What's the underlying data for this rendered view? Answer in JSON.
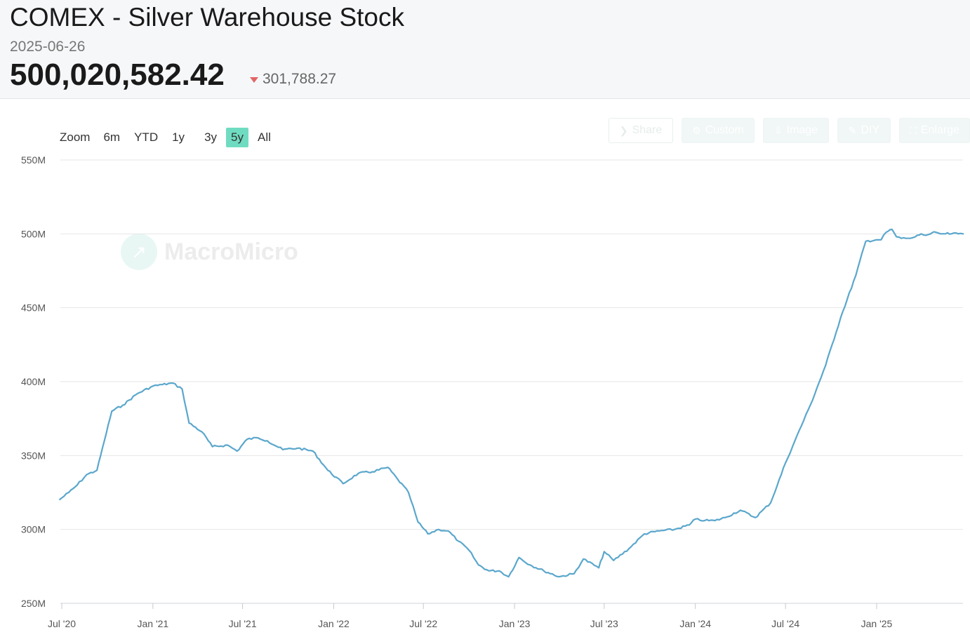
{
  "header": {
    "title": "COMEX - Silver Warehouse Stock",
    "date": "2025-06-26",
    "value": "500,020,582.42",
    "change": "301,788.27"
  },
  "zoom": {
    "label": "Zoom",
    "options": [
      "6m",
      "YTD",
      "1y",
      "3y",
      "5y",
      "All"
    ],
    "active": "5y"
  },
  "toolbar": {
    "buttons": [
      {
        "label": "Share",
        "icon": "share-icon"
      },
      {
        "label": "Custom",
        "icon": "gear-icon"
      },
      {
        "label": "Image",
        "icon": "download-icon"
      },
      {
        "label": "DIY",
        "icon": "pencil-icon"
      },
      {
        "label": "Enlarge",
        "icon": "expand-icon"
      }
    ]
  },
  "watermark": {
    "text": "MacroMicro",
    "icon": "chart-logo-icon"
  },
  "chart_data": {
    "type": "line",
    "title": "",
    "xlabel": "",
    "ylabel": "",
    "ylim": [
      250,
      550
    ],
    "y_unit": "M",
    "y_ticks": [
      "250M",
      "300M",
      "350M",
      "400M",
      "450M",
      "500M",
      "550M"
    ],
    "x_ticks": [
      "Jul '20",
      "Jan '21",
      "Jul '21",
      "Jan '22",
      "Jul '22",
      "Jan '23",
      "Jul '23",
      "Jan '24",
      "Jul '24",
      "Jan '25"
    ],
    "grid": true,
    "legend": "none",
    "line_color": "#5ba7cc",
    "series": [
      {
        "x": [
          "2020-06-26",
          "2020-07-15",
          "2020-08-01",
          "2020-08-20",
          "2020-09-10",
          "2020-09-25",
          "2020-10-10",
          "2020-11-01",
          "2020-12-01",
          "2021-01-01",
          "2021-01-20",
          "2021-02-10",
          "2021-03-01",
          "2021-03-15",
          "2021-04-10",
          "2021-05-01",
          "2021-06-01",
          "2021-06-20",
          "2021-07-10",
          "2021-08-01",
          "2021-08-20",
          "2021-09-20",
          "2021-10-20",
          "2021-11-20",
          "2021-12-20",
          "2022-01-20",
          "2022-02-20",
          "2022-03-20",
          "2022-04-20",
          "2022-05-10",
          "2022-06-01",
          "2022-06-20",
          "2022-07-10",
          "2022-08-01",
          "2022-08-20",
          "2022-09-10",
          "2022-10-01",
          "2022-10-20",
          "2022-11-10",
          "2022-12-01",
          "2022-12-20",
          "2023-01-10",
          "2023-02-01",
          "2023-03-01",
          "2023-04-01",
          "2023-05-01",
          "2023-05-20",
          "2023-06-20",
          "2023-07-01",
          "2023-07-20",
          "2023-08-20",
          "2023-09-20",
          "2023-10-20",
          "2023-11-20",
          "2023-12-20",
          "2024-01-01",
          "2024-01-20",
          "2024-02-10",
          "2024-03-01",
          "2024-04-01",
          "2024-05-01",
          "2024-06-01",
          "2024-07-01",
          "2024-07-20",
          "2024-08-20",
          "2024-09-20",
          "2024-10-20",
          "2024-11-20",
          "2024-12-10",
          "2025-01-01",
          "2025-01-10",
          "2025-01-20",
          "2025-02-01",
          "2025-02-10",
          "2025-02-20",
          "2025-03-01",
          "2025-03-10",
          "2025-03-20",
          "2025-04-01",
          "2025-04-10",
          "2025-04-20",
          "2025-05-01",
          "2025-05-10",
          "2025-05-20",
          "2025-06-01",
          "2025-06-15",
          "2025-06-26"
        ],
        "values": [
          320,
          325,
          330,
          337,
          340,
          360,
          380,
          384,
          392,
          397,
          398,
          399,
          395,
          372,
          366,
          356,
          357,
          353,
          361,
          362,
          360,
          354,
          355,
          353,
          340,
          331,
          338,
          339,
          342,
          334,
          325,
          305,
          297,
          300,
          299,
          292,
          286,
          276,
          272,
          272,
          268,
          281,
          276,
          272,
          268,
          270,
          280,
          274,
          285,
          279,
          287,
          297,
          299,
          300,
          303,
          307,
          306,
          306,
          308,
          313,
          308,
          318,
          345,
          360,
          384,
          411,
          443,
          472,
          495,
          496,
          496,
          501,
          503,
          498,
          497,
          497,
          497,
          498,
          500,
          499,
          500,
          501,
          500,
          500,
          500,
          500,
          500
        ]
      }
    ]
  }
}
